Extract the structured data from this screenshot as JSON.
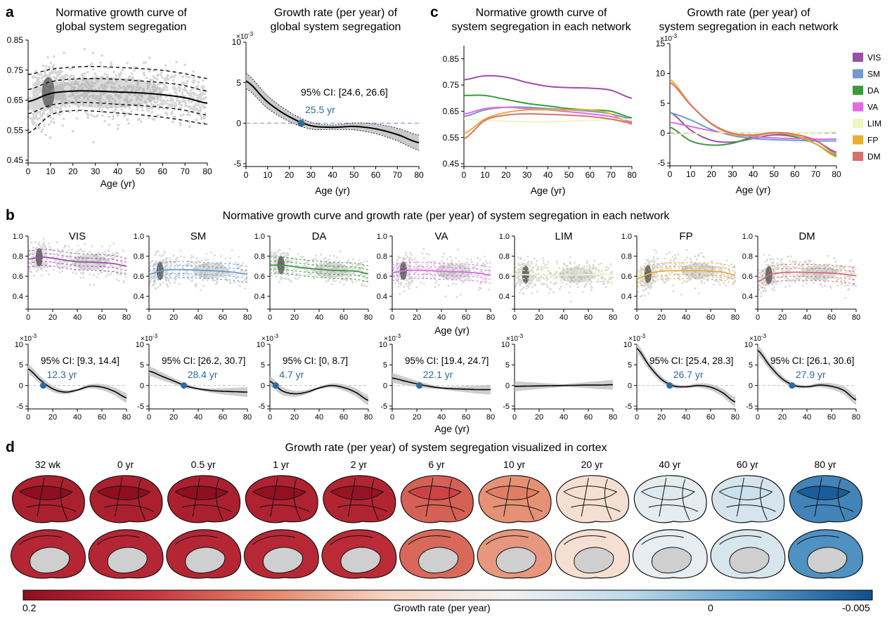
{
  "panel_labels": {
    "a": "a",
    "b": "b",
    "c": "c",
    "d": "d"
  },
  "titles": {
    "a_left": [
      "Normative growth curve of",
      "global system segregation"
    ],
    "a_right": [
      "Growth rate (per year) of",
      "global system segregation"
    ],
    "c_left": [
      "Normative growth curve of",
      "system segregation in each network"
    ],
    "c_right": [
      "Growth rate (per year) of",
      "system segregation in each network"
    ],
    "b": "Normative growth curve and growth rate (per year) of system segregation in each network",
    "d": "Growth rate (per year) of system segregation visualized in cortex"
  },
  "axis": {
    "age_label": "Age (yr)",
    "exp": "×10",
    "exp_power": "-3"
  },
  "networks": [
    {
      "id": "VIS",
      "color": "#9b4fa8"
    },
    {
      "id": "SM",
      "color": "#6f9ccb"
    },
    {
      "id": "DA",
      "color": "#3b9b3c"
    },
    {
      "id": "VA",
      "color": "#e06ae8"
    },
    {
      "id": "LIM",
      "color": "#eef5c0"
    },
    {
      "id": "FP",
      "color": "#e9ae32"
    },
    {
      "id": "DM",
      "color": "#d8706e"
    }
  ],
  "brain_ages": [
    "32 wk",
    "0 yr",
    "0.5 yr",
    "1 yr",
    "2 yr",
    "6 yr",
    "10 yr",
    "20 yr",
    "40 yr",
    "60 yr",
    "80 yr"
  ],
  "brain_tone": [
    1.0,
    1.0,
    1.0,
    0.98,
    0.96,
    0.65,
    0.45,
    0.05,
    -0.25,
    -0.35,
    -0.95
  ],
  "colorbar": {
    "left": "0.2",
    "mid_label": "Growth rate (per year)",
    "zero": "0",
    "right": "-0.005",
    "colors": [
      "#8f0e1f",
      "#c4303d",
      "#e28467",
      "#f6d4c2",
      "#f2f2f2",
      "#bcdaea",
      "#5b9dcb",
      "#0e4f8f"
    ]
  },
  "chart_data": [
    {
      "id": "a-left",
      "type": "line",
      "title": "Normative growth curve of global system segregation",
      "xlabel": "Age (yr)",
      "ylabel": "",
      "xlim": [
        0,
        80
      ],
      "ylim": [
        0.45,
        0.85
      ],
      "xticks": [
        0,
        10,
        20,
        30,
        40,
        50,
        60,
        70,
        80
      ],
      "yticks": [
        0.45,
        0.55,
        0.65,
        0.75,
        0.85
      ],
      "x": [
        0,
        10,
        20,
        30,
        40,
        50,
        60,
        70,
        80
      ],
      "series": [
        {
          "name": "",
          "values": [
            0.645,
            0.672,
            0.68,
            0.68,
            0.677,
            0.674,
            0.668,
            0.658,
            0.64
          ]
        },
        {
          "name": "",
          "values": [
            0.685,
            0.711,
            0.72,
            0.722,
            0.719,
            0.714,
            0.708,
            0.698,
            0.68
          ]
        },
        {
          "name": "",
          "values": [
            0.605,
            0.633,
            0.642,
            0.641,
            0.636,
            0.632,
            0.626,
            0.616,
            0.6
          ]
        },
        {
          "name": "",
          "values": [
            0.735,
            0.752,
            0.76,
            0.762,
            0.759,
            0.755,
            0.749,
            0.738,
            0.722
          ]
        },
        {
          "name": "",
          "values": [
            0.54,
            0.6,
            0.615,
            0.613,
            0.607,
            0.601,
            0.593,
            0.582,
            0.57
          ]
        }
      ]
    },
    {
      "id": "a-right",
      "type": "line",
      "title": "Growth rate (per year) of global system segregation",
      "xlabel": "Age (yr)",
      "ylabel": "",
      "xlim": [
        0,
        80
      ],
      "ylim": [
        -5,
        10
      ],
      "xticks": [
        0,
        10,
        20,
        30,
        40,
        50,
        60,
        70,
        80
      ],
      "yticks": [
        -5,
        0,
        5,
        10
      ],
      "x": [
        0,
        10,
        20,
        30,
        40,
        50,
        60,
        70,
        80
      ],
      "series": [
        {
          "name": "",
          "values": [
            5.2,
            2.6,
            0.8,
            -0.3,
            -0.5,
            -0.4,
            -0.7,
            -1.4,
            -2.4
          ]
        }
      ],
      "annotations": {
        "ci": "95% CI: [24.6, 26.6]",
        "zero_crossing_label": "25.5 yr",
        "zero_crossing": 25.5
      }
    },
    {
      "id": "c-left",
      "type": "line",
      "title": "Normative growth curve of system segregation in each network",
      "xlabel": "Age (yr)",
      "ylabel": "",
      "xlim": [
        0,
        80
      ],
      "ylim": [
        0.45,
        0.9
      ],
      "xticks": [
        0,
        10,
        20,
        30,
        40,
        50,
        60,
        70,
        80
      ],
      "yticks": [
        0.45,
        0.55,
        0.65,
        0.75,
        0.85
      ],
      "x": [
        0,
        10,
        20,
        30,
        40,
        50,
        60,
        70,
        80
      ],
      "series": [
        {
          "name": "VIS",
          "values": [
            0.77,
            0.785,
            0.78,
            0.76,
            0.745,
            0.74,
            0.738,
            0.73,
            0.7
          ]
        },
        {
          "name": "SM",
          "values": [
            0.63,
            0.655,
            0.665,
            0.665,
            0.66,
            0.655,
            0.65,
            0.64,
            0.62
          ]
        },
        {
          "name": "DA",
          "values": [
            0.71,
            0.71,
            0.695,
            0.68,
            0.67,
            0.66,
            0.655,
            0.65,
            0.625
          ]
        },
        {
          "name": "VA",
          "values": [
            0.64,
            0.66,
            0.665,
            0.66,
            0.655,
            0.648,
            0.64,
            0.63,
            0.61
          ]
        },
        {
          "name": "LIM",
          "values": [
            0.62,
            0.615,
            0.612,
            0.61,
            0.61,
            0.612,
            0.615,
            0.618,
            0.62
          ]
        },
        {
          "name": "FP",
          "values": [
            0.565,
            0.62,
            0.645,
            0.655,
            0.655,
            0.655,
            0.655,
            0.64,
            0.6
          ]
        },
        {
          "name": "DM",
          "values": [
            0.545,
            0.615,
            0.635,
            0.64,
            0.638,
            0.635,
            0.63,
            0.62,
            0.605
          ]
        }
      ]
    },
    {
      "id": "c-right",
      "type": "line",
      "title": "Growth rate (per year) of system segregation in each network",
      "xlabel": "Age (yr)",
      "ylabel": "",
      "xlim": [
        0,
        80
      ],
      "ylim": [
        -5,
        15
      ],
      "xticks": [
        0,
        10,
        20,
        30,
        40,
        50,
        60,
        70,
        80
      ],
      "yticks": [
        -5,
        0,
        5,
        10,
        15
      ],
      "x": [
        0,
        10,
        20,
        30,
        40,
        50,
        60,
        70,
        80
      ],
      "series": [
        {
          "name": "VIS",
          "values": [
            3.5,
            0.5,
            -1.2,
            -1.5,
            -0.9,
            -0.3,
            -0.6,
            -1.3,
            -3.2
          ]
        },
        {
          "name": "SM",
          "values": [
            3.4,
            2.2,
            0.6,
            -0.4,
            -0.9,
            -1.1,
            -1.2,
            -1.3,
            -1.3
          ]
        },
        {
          "name": "DA",
          "values": [
            1.0,
            -1.3,
            -2.0,
            -1.7,
            -0.6,
            0.0,
            -0.6,
            -1.8,
            -3.8
          ]
        },
        {
          "name": "VA",
          "values": [
            1.8,
            1.1,
            0.4,
            -0.2,
            -0.6,
            -0.8,
            -0.9,
            -1.0,
            -1.0
          ]
        },
        {
          "name": "LIM",
          "values": [
            -0.2,
            -0.1,
            0.0,
            0.1,
            0.1,
            0.1,
            0.1,
            0.1,
            0.2
          ]
        },
        {
          "name": "FP",
          "values": [
            9.0,
            4.8,
            1.5,
            -0.2,
            -0.4,
            0.0,
            -0.4,
            -1.8,
            -4.0
          ]
        },
        {
          "name": "DM",
          "values": [
            8.5,
            4.7,
            1.6,
            0.0,
            -0.3,
            0.1,
            -0.2,
            -1.2,
            -3.5
          ]
        }
      ]
    },
    {
      "id": "b-curves",
      "type": "line",
      "title": "",
      "xlabel": "Age (yr)",
      "ylabel": "",
      "xlim": [
        0,
        80
      ],
      "ylim": [
        0.3,
        1.0
      ],
      "xticks": [
        0,
        20,
        40,
        60,
        80
      ],
      "yticks": [
        0.4,
        0.6,
        0.8,
        1.0
      ],
      "x": [
        0,
        10,
        20,
        30,
        40,
        50,
        60,
        70,
        80
      ],
      "series": [
        {
          "name": "VIS",
          "values": [
            0.77,
            0.79,
            0.78,
            0.76,
            0.745,
            0.74,
            0.735,
            0.725,
            0.7
          ]
        },
        {
          "name": "SM",
          "values": [
            0.62,
            0.655,
            0.665,
            0.665,
            0.66,
            0.655,
            0.648,
            0.638,
            0.62
          ]
        },
        {
          "name": "DA",
          "values": [
            0.71,
            0.71,
            0.695,
            0.68,
            0.67,
            0.66,
            0.655,
            0.65,
            0.625
          ]
        },
        {
          "name": "VA",
          "values": [
            0.635,
            0.655,
            0.66,
            0.655,
            0.65,
            0.645,
            0.64,
            0.63,
            0.61
          ]
        },
        {
          "name": "LIM",
          "values": [
            0.62,
            0.615,
            0.612,
            0.61,
            0.61,
            0.612,
            0.615,
            0.618,
            0.62
          ]
        },
        {
          "name": "FP",
          "values": [
            0.57,
            0.625,
            0.65,
            0.655,
            0.655,
            0.655,
            0.65,
            0.64,
            0.61
          ]
        },
        {
          "name": "DM",
          "values": [
            0.545,
            0.615,
            0.635,
            0.64,
            0.638,
            0.635,
            0.63,
            0.62,
            0.605
          ]
        }
      ]
    },
    {
      "id": "b-rates",
      "type": "line",
      "title": "",
      "xlabel": "Age (yr)",
      "ylabel": "",
      "xlim": [
        0,
        80
      ],
      "ylim": [
        -5,
        10
      ],
      "xticks": [
        0,
        20,
        40,
        60,
        80
      ],
      "yticks": [
        -5,
        0,
        5,
        10
      ],
      "x": [
        0,
        10,
        20,
        30,
        40,
        50,
        60,
        70,
        80
      ],
      "series": [
        {
          "name": "VIS",
          "values": [
            4.0,
            1.3,
            -0.8,
            -1.6,
            -1.1,
            -0.2,
            -0.4,
            -1.4,
            -3.0
          ],
          "ci": "95% CI: [9.3, 14.4]",
          "zero": 12.3,
          "zero_label": "12.3 yr"
        },
        {
          "name": "SM",
          "values": [
            3.5,
            2.3,
            1.1,
            -0.1,
            -0.8,
            -1.2,
            -1.4,
            -1.5,
            -1.6
          ],
          "ci": "95% CI: [26.2, 30.7]",
          "zero": 28.4,
          "zero_label": "28.4 yr"
        },
        {
          "name": "DA",
          "values": [
            1.0,
            -1.3,
            -2.0,
            -1.6,
            -0.6,
            0.0,
            -0.5,
            -1.7,
            -3.6
          ],
          "ci": "95% CI: [0, 8.7]",
          "zero": 4.7,
          "zero_label": "4.7 yr"
        },
        {
          "name": "VA",
          "values": [
            1.8,
            1.1,
            0.4,
            -0.2,
            -0.6,
            -0.8,
            -0.9,
            -1.0,
            -1.0
          ],
          "ci": "95% CI: [19.4, 24.7]",
          "zero": 22.1,
          "zero_label": "22.1 yr"
        },
        {
          "name": "LIM",
          "values": [
            -0.2,
            -0.15,
            -0.1,
            -0.05,
            0.0,
            0.05,
            0.1,
            0.1,
            0.2
          ],
          "ci": "",
          "zero": null,
          "zero_label": ""
        },
        {
          "name": "FP",
          "values": [
            9.0,
            4.8,
            1.5,
            -0.1,
            -0.3,
            0.0,
            -0.4,
            -1.8,
            -4.0
          ],
          "ci": "95% CI: [25.4, 28.3]",
          "zero": 26.7,
          "zero_label": "26.7 yr"
        },
        {
          "name": "DM",
          "values": [
            8.5,
            4.7,
            1.6,
            0.0,
            -0.3,
            0.1,
            -0.2,
            -1.2,
            -3.5
          ],
          "ci": "95% CI: [26.1, 30.6]",
          "zero": 27.9,
          "zero_label": "27.9 yr"
        }
      ]
    }
  ]
}
